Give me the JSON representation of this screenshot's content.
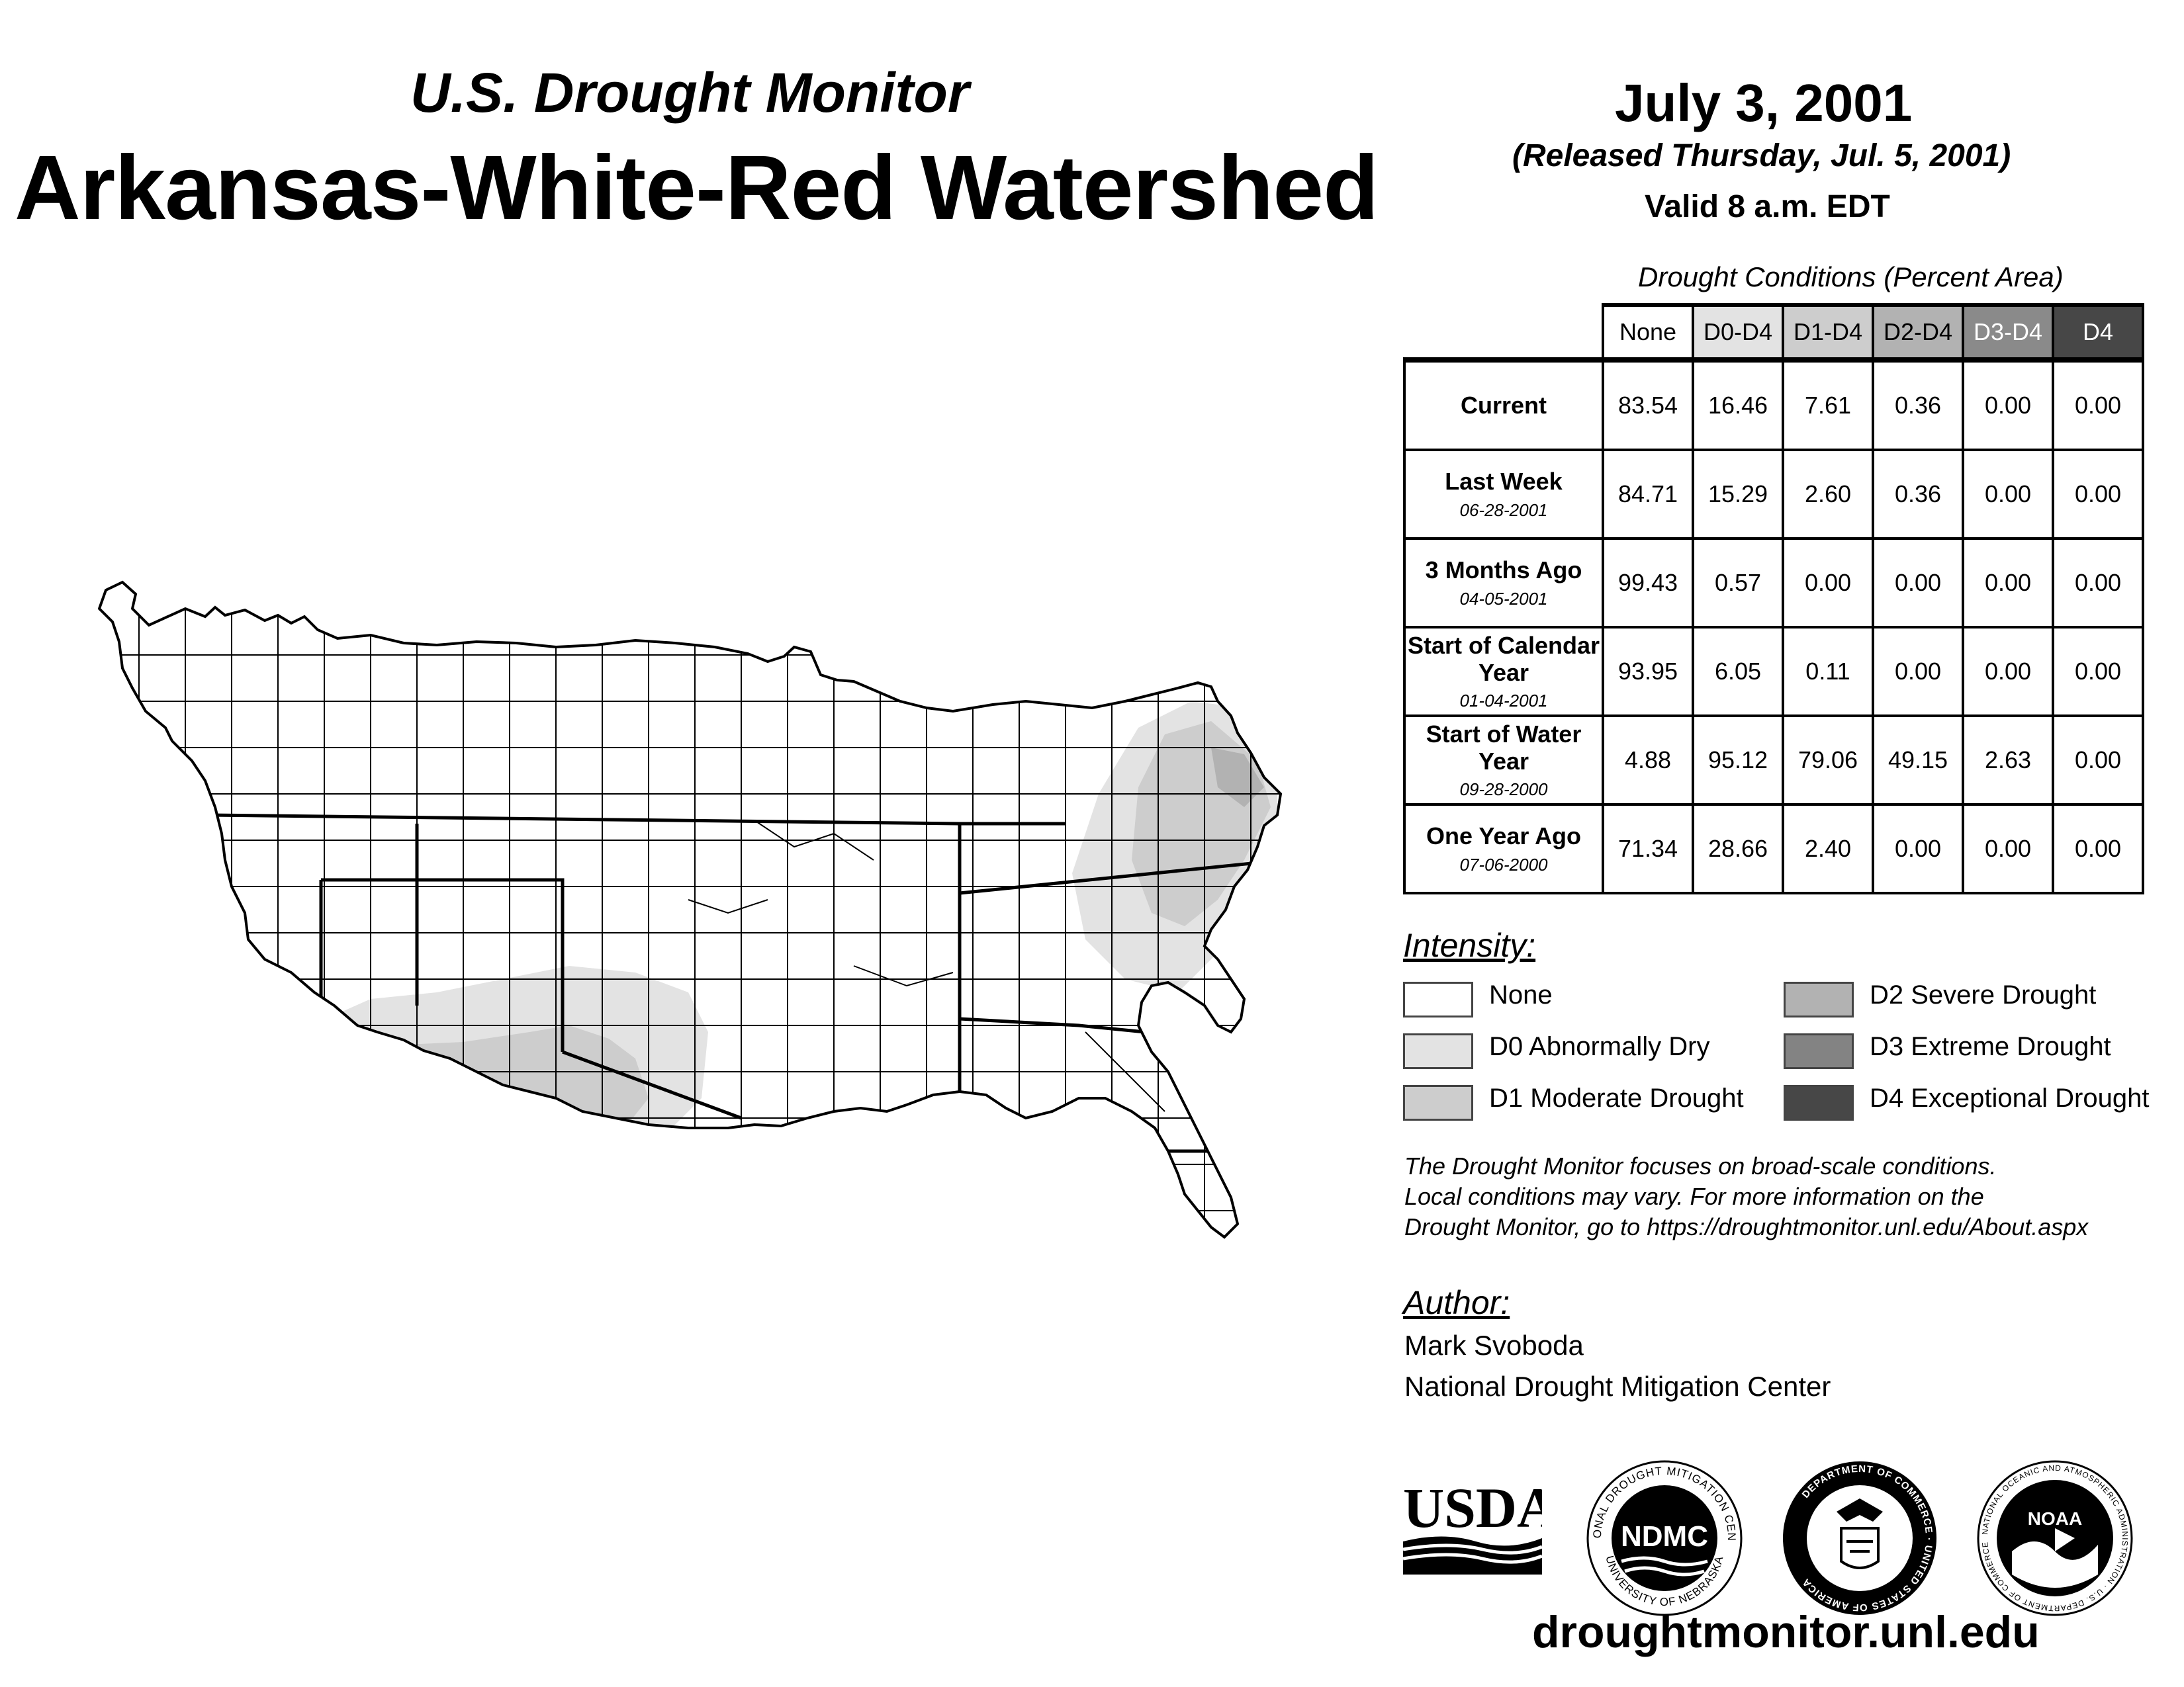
{
  "header": {
    "subtitle": "U.S. Drought Monitor",
    "title": "Arkansas-White-Red Watershed",
    "date": "July 3, 2001",
    "released": "(Released Thursday, Jul. 5, 2001)",
    "valid": "Valid 8 a.m. EDT"
  },
  "table": {
    "caption": "Drought Conditions (Percent Area)",
    "columns": [
      "None",
      "D0-D4",
      "D1-D4",
      "D2-D4",
      "D3-D4",
      "D4"
    ],
    "column_colors": [
      "#ffffff",
      "#e3e3e3",
      "#cdcdcd",
      "#b2b2b2",
      "#8a8a8a",
      "#474747"
    ],
    "rows": [
      {
        "label": "Current",
        "date": "",
        "values": [
          "83.54",
          "16.46",
          "7.61",
          "0.36",
          "0.00",
          "0.00"
        ]
      },
      {
        "label": "Last Week",
        "date": "06-28-2001",
        "values": [
          "84.71",
          "15.29",
          "2.60",
          "0.36",
          "0.00",
          "0.00"
        ]
      },
      {
        "label": "3 Months Ago",
        "date": "04-05-2001",
        "values": [
          "99.43",
          "0.57",
          "0.00",
          "0.00",
          "0.00",
          "0.00"
        ]
      },
      {
        "label": "Start of Calendar Year",
        "date": "01-04-2001",
        "values": [
          "93.95",
          "6.05",
          "0.11",
          "0.00",
          "0.00",
          "0.00"
        ]
      },
      {
        "label": "Start of Water Year",
        "date": "09-28-2000",
        "values": [
          "4.88",
          "95.12",
          "79.06",
          "49.15",
          "2.63",
          "0.00"
        ]
      },
      {
        "label": "One Year Ago",
        "date": "07-06-2000",
        "values": [
          "71.34",
          "28.66",
          "2.40",
          "0.00",
          "0.00",
          "0.00"
        ]
      }
    ]
  },
  "legend": {
    "title": "Intensity:",
    "items": [
      {
        "label": "None",
        "color": "#ffffff"
      },
      {
        "label": "D0 Abnormally Dry",
        "color": "#e3e3e3"
      },
      {
        "label": "D1 Moderate Drought",
        "color": "#cdcdcd"
      },
      {
        "label": "D2 Severe Drought",
        "color": "#b2b2b2"
      },
      {
        "label": "D3 Extreme Drought",
        "color": "#838383"
      },
      {
        "label": "D4 Exceptional Drought",
        "color": "#474747"
      }
    ]
  },
  "note": [
    "The Drought Monitor focuses on broad-scale conditions.",
    "Local conditions may vary. For more information on the",
    "Drought Monitor, go to https://droughtmonitor.unl.edu/About.aspx"
  ],
  "author": {
    "title": "Author:",
    "name": "Mark Svoboda",
    "org": "National Drought Mitigation Center"
  },
  "logos": {
    "usda": "USDA",
    "ndmc": "NDMC",
    "ndmc_ring_top": "NATIONAL DROUGHT MITIGATION CENTER",
    "ndmc_ring_bottom": "UNIVERSITY OF NEBRASKA",
    "doc_ring": "DEPARTMENT OF COMMERCE · UNITED STATES OF AMERICA",
    "noaa": "NOAA",
    "noaa_ring": "NATIONAL OCEANIC AND ATMOSPHERIC ADMINISTRATION · U.S. DEPARTMENT OF COMMERCE"
  },
  "url": "droughtmonitor.unl.edu"
}
